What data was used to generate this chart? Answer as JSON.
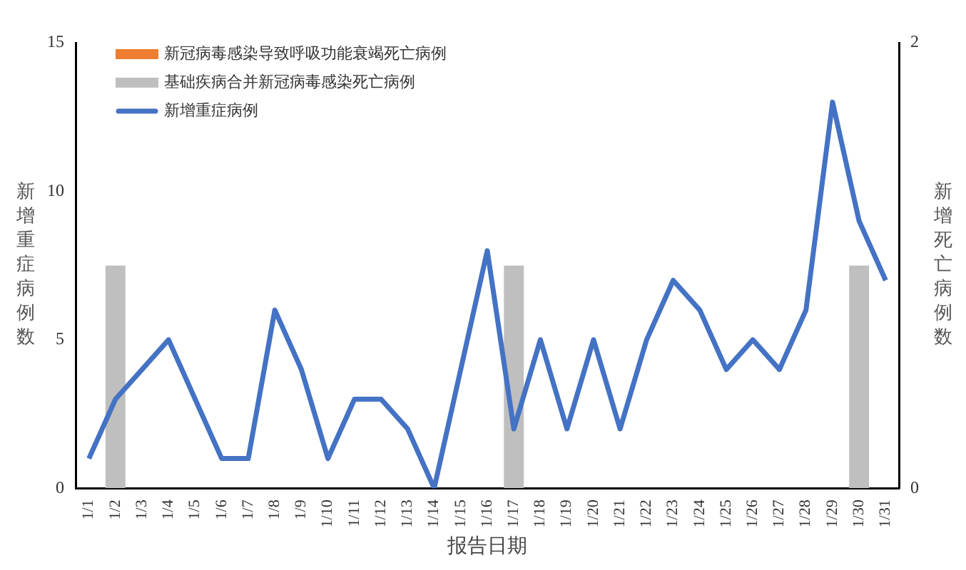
{
  "chart_data": {
    "type": "bar",
    "categories": [
      "1/1",
      "1/2",
      "1/3",
      "1/4",
      "1/5",
      "1/6",
      "1/7",
      "1/8",
      "1/9",
      "1/10",
      "1/11",
      "1/12",
      "1/13",
      "1/14",
      "1/15",
      "1/16",
      "1/17",
      "1/18",
      "1/19",
      "1/20",
      "1/21",
      "1/22",
      "1/23",
      "1/24",
      "1/25",
      "1/26",
      "1/27",
      "1/28",
      "1/29",
      "1/30",
      "1/31"
    ],
    "series": [
      {
        "name": "新冠病毒感染导致呼吸功能衰竭死亡病例",
        "axis": "y2",
        "color": "#ed7d31",
        "values": [
          0,
          0,
          0,
          0,
          0,
          0,
          0,
          0,
          0,
          0,
          0,
          0,
          0,
          0,
          0,
          0,
          0,
          0,
          0,
          0,
          0,
          0,
          0,
          0,
          0,
          0,
          0,
          0,
          0,
          0,
          0
        ]
      },
      {
        "name": "基础疾病合并新冠病毒感染死亡病例",
        "axis": "y2",
        "color": "#bfbfbf",
        "values": [
          0,
          1,
          0,
          0,
          0,
          0,
          0,
          0,
          0,
          0,
          0,
          0,
          0,
          0,
          0,
          0,
          1,
          0,
          0,
          0,
          0,
          0,
          0,
          0,
          0,
          0,
          0,
          0,
          0,
          1,
          0
        ]
      },
      {
        "name": "新增重症病例",
        "type": "line",
        "color": "#4472c4",
        "values": [
          1,
          3,
          4,
          5,
          3,
          1,
          1,
          6,
          4,
          1,
          3,
          3,
          2,
          0,
          4,
          8,
          2,
          5,
          2,
          5,
          2,
          5,
          7,
          6,
          4,
          5,
          4,
          6,
          13,
          9,
          7
        ]
      }
    ],
    "xlabel": "报告日期",
    "ylabel": "新增重症病例数",
    "y2label": "新增死亡病例数",
    "ylim": [
      0,
      15
    ],
    "yticks": [
      0,
      5,
      10,
      15
    ],
    "y2lim": [
      0,
      2
    ],
    "y2ticks": [
      0,
      2
    ],
    "legend": "top left",
    "grid": false,
    "marker": "none",
    "line_style": "solid"
  }
}
